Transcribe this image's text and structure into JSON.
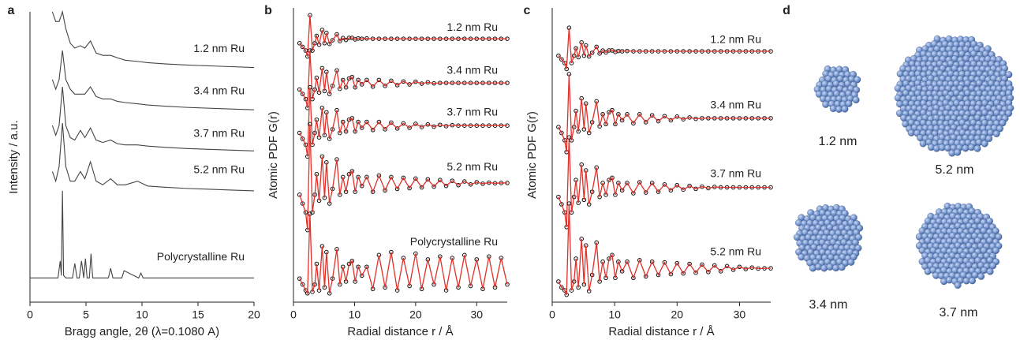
{
  "chart_data": [
    {
      "type": "line",
      "panel_label": "a",
      "xlabel": "Bragg angle, 2θ (λ=0.1080 A)",
      "ylabel": "Intensity / a.u.",
      "xlim": [
        0,
        20
      ],
      "ylim": [
        0,
        12
      ],
      "xticks": [
        0,
        5,
        10,
        15,
        20
      ],
      "x": [
        2,
        2.3,
        2.6,
        2.9,
        3.2,
        3.6,
        4.0,
        4.5,
        4.9,
        5.4,
        5.9,
        6.5,
        7.2,
        7.8,
        8.5,
        9.6,
        10.5,
        12,
        14,
        17,
        20
      ],
      "series": [
        {
          "name": "1.2 nm Ru",
          "color": "#444444",
          "values": [
            12.0,
            11.6,
            11.6,
            12.0,
            11.3,
            10.7,
            10.5,
            10.6,
            10.5,
            10.8,
            10.3,
            10.2,
            10.2,
            10.1,
            10.0,
            9.95,
            9.9,
            9.85,
            9.8,
            9.75,
            9.7
          ]
        },
        {
          "name": "3.4 nm Ru",
          "color": "#444444",
          "values": [
            9.2,
            8.8,
            9.2,
            10.4,
            9.2,
            8.8,
            8.6,
            8.6,
            8.6,
            8.9,
            8.5,
            8.4,
            8.4,
            8.3,
            8.25,
            8.2,
            8.15,
            8.1,
            8.05,
            8.0,
            7.95
          ]
        },
        {
          "name": "3.7 nm Ru",
          "color": "#444444",
          "values": [
            7.3,
            6.9,
            7.3,
            8.9,
            7.3,
            6.8,
            6.7,
            7.1,
            6.8,
            7.2,
            6.7,
            6.6,
            6.7,
            6.55,
            6.5,
            6.5,
            6.45,
            6.4,
            6.35,
            6.3,
            6.25
          ]
        },
        {
          "name": "5.2 nm Ru",
          "color": "#444444",
          "values": [
            5.4,
            5.0,
            5.6,
            7.4,
            5.6,
            5.0,
            5.0,
            5.4,
            5.1,
            5.8,
            5.0,
            4.85,
            5.1,
            4.85,
            4.85,
            5.0,
            4.8,
            4.75,
            4.7,
            4.65,
            4.6
          ]
        },
        {
          "name": "Polycrystalline Ru",
          "color": "#444444",
          "x": [
            0,
            2.5,
            2.7,
            2.8,
            2.9,
            3.0,
            3.2,
            3.8,
            4.0,
            4.2,
            4.4,
            4.6,
            4.8,
            4.95,
            5.1,
            5.3,
            5.45,
            5.6,
            6.5,
            7.0,
            7.2,
            7.4,
            8.2,
            8.4,
            9.7,
            9.9,
            10.1,
            12,
            20
          ],
          "values": [
            1.0,
            1.0,
            1.7,
            1.1,
            4.6,
            1.1,
            1.0,
            1.0,
            1.6,
            1.0,
            1.0,
            1.7,
            1.0,
            1.8,
            1.0,
            1.0,
            2.0,
            1.0,
            1.0,
            1.0,
            1.4,
            1.0,
            1.0,
            1.3,
            1.0,
            1.2,
            1.0,
            1.0,
            1.0
          ]
        }
      ]
    },
    {
      "type": "line",
      "panel_label": "b",
      "xlabel": "Radial distance r / Å",
      "ylabel": "Atomic PDF G(r)",
      "xlim": [
        0,
        35
      ],
      "ylim": [
        0,
        20
      ],
      "xticks": [
        0,
        10,
        20,
        30
      ],
      "line_color": "#e0302a",
      "x": [
        1,
        1.5,
        2,
        2.3,
        2.7,
        3.1,
        3.5,
        3.8,
        4.2,
        4.7,
        5.1,
        5.4,
        5.9,
        6.4,
        7.1,
        7.6,
        8.1,
        8.6,
        9.1,
        9.6,
        10.1,
        10.6,
        11.2,
        12,
        13,
        14,
        15,
        16,
        17,
        18,
        19,
        20,
        21,
        22,
        23,
        24,
        25,
        26,
        27,
        28,
        29,
        30,
        31,
        32,
        33,
        34,
        35
      ],
      "series": [
        {
          "name": "1.2 nm Ru",
          "color": "#111111",
          "marker": "circle",
          "values": [
            17.6,
            17.35,
            17.1,
            16.7,
            19.5,
            17.1,
            17.6,
            18.1,
            17.5,
            18.5,
            17.6,
            18.3,
            17.55,
            17.8,
            18.2,
            17.75,
            17.95,
            17.82,
            17.96,
            17.96,
            17.86,
            17.92,
            17.9,
            17.92,
            17.9,
            17.9,
            17.9,
            17.9,
            17.9,
            17.9,
            17.9,
            17.9,
            17.9,
            17.9,
            17.9,
            17.9,
            17.9,
            17.9,
            17.9,
            17.9,
            17.9,
            17.9,
            17.9,
            17.9,
            17.9,
            17.9,
            17.9
          ]
        },
        {
          "name": "3.4 nm Ru",
          "color": "#111111",
          "marker": "circle",
          "values": [
            14.45,
            14.15,
            13.8,
            13.2,
            17.1,
            13.8,
            14.45,
            15.25,
            14.25,
            15.9,
            14.35,
            15.65,
            14.15,
            14.7,
            15.75,
            14.5,
            15.1,
            14.6,
            15.2,
            15.3,
            14.6,
            15.1,
            14.8,
            15.1,
            14.65,
            15.1,
            14.7,
            15.05,
            14.75,
            15.0,
            14.8,
            14.98,
            14.85,
            14.94,
            14.87,
            14.9,
            14.9,
            14.9,
            14.9,
            14.9,
            14.9,
            14.9,
            14.9,
            14.9,
            14.9,
            14.9,
            14.9
          ]
        },
        {
          "name": "3.7 nm Ru",
          "color": "#111111",
          "marker": "circle",
          "values": [
            11.5,
            11.1,
            10.7,
            9.9,
            14.6,
            10.7,
            11.5,
            12.4,
            11.2,
            13.2,
            11.35,
            12.9,
            11.1,
            11.75,
            13.05,
            11.5,
            12.25,
            11.6,
            12.4,
            12.5,
            11.6,
            12.25,
            11.85,
            12.25,
            11.7,
            12.25,
            11.75,
            12.2,
            11.8,
            12.15,
            11.85,
            12.12,
            11.9,
            12.08,
            11.93,
            12.05,
            11.96,
            12.03,
            12,
            12,
            12,
            12,
            12,
            12,
            12,
            12,
            12
          ]
        },
        {
          "name": "5.2 nm Ru",
          "color": "#111111",
          "marker": "circle",
          "values": [
            7.3,
            6.7,
            6.1,
            4.9,
            12.1,
            6.1,
            7.3,
            8.7,
            6.9,
            9.9,
            7.1,
            9.5,
            6.7,
            7.7,
            9.7,
            7.3,
            8.5,
            7.5,
            8.7,
            8.9,
            7.5,
            8.5,
            7.9,
            8.5,
            7.5,
            8.6,
            7.6,
            8.5,
            7.7,
            8.45,
            7.75,
            8.4,
            7.8,
            8.35,
            7.85,
            8.3,
            7.9,
            8.25,
            7.95,
            8.2,
            8.0,
            8.15,
            8.05,
            8.12,
            8.08,
            8.1,
            8.1
          ]
        },
        {
          "name": "Polycrystalline Ru",
          "color": "#111111",
          "marker": "circle",
          "values": [
            1.6,
            1.2,
            0.8,
            0.6,
            6.0,
            0.7,
            1.2,
            2.6,
            0.8,
            3.8,
            1.0,
            3.4,
            0.6,
            1.6,
            3.6,
            1.2,
            2.4,
            1.4,
            2.6,
            2.8,
            1.4,
            2.4,
            1.8,
            2.4,
            0.9,
            3.2,
            1.0,
            3.4,
            0.8,
            3.0,
            1.1,
            3.3,
            0.9,
            2.9,
            1.2,
            3.1,
            0.8,
            3.0,
            1.0,
            3.2,
            1.1,
            2.9,
            0.9,
            3.1,
            1.0,
            3.0,
            1.2
          ]
        }
      ]
    },
    {
      "type": "line",
      "panel_label": "c",
      "xlabel": "Radial distance r / Å",
      "ylabel": "Atomic PDF G(r)",
      "xlim": [
        0,
        35
      ],
      "ylim": [
        0,
        20
      ],
      "xticks": [
        0,
        10,
        20,
        30
      ],
      "line_color": "#e0302a",
      "x": [
        1,
        1.5,
        2,
        2.3,
        2.7,
        3.1,
        3.5,
        3.8,
        4.2,
        4.7,
        5.1,
        5.4,
        5.9,
        6.4,
        7.1,
        7.6,
        8.1,
        8.6,
        9.1,
        9.6,
        10.1,
        10.6,
        11.2,
        12,
        13,
        14,
        15,
        16,
        17,
        18,
        19,
        20,
        21,
        22,
        23,
        24,
        25,
        26,
        27,
        28,
        29,
        30,
        31,
        32,
        33,
        34,
        35
      ],
      "series": [
        {
          "name": "1.2 nm Ru",
          "color": "#111111",
          "marker": "circle",
          "values": [
            16.75,
            16.5,
            16.25,
            15.85,
            18.65,
            16.25,
            16.75,
            17.25,
            16.65,
            17.65,
            16.75,
            17.45,
            16.7,
            16.95,
            17.35,
            16.9,
            17.1,
            16.97,
            17.11,
            17.11,
            17.01,
            17.07,
            17.05,
            17.07,
            17.05,
            17.05,
            17.05,
            17.05,
            17.05,
            17.05,
            17.05,
            17.05,
            17.05,
            17.05,
            17.05,
            17.05,
            17.05,
            17.05,
            17.05,
            17.05,
            17.05,
            17.05,
            17.05,
            17.05,
            17.05,
            17.05,
            17.05
          ]
        },
        {
          "name": "3.4 nm Ru",
          "color": "#111111",
          "marker": "circle",
          "values": [
            11.9,
            11.5,
            11.0,
            10.2,
            15.5,
            11.0,
            11.9,
            13.0,
            11.6,
            13.85,
            11.75,
            13.5,
            11.5,
            12.23,
            13.65,
            11.95,
            12.77,
            12.1,
            12.9,
            13.05,
            12.1,
            12.77,
            12.36,
            12.77,
            12.16,
            12.77,
            12.23,
            12.7,
            12.3,
            12.64,
            12.36,
            12.61,
            12.43,
            12.55,
            12.46,
            12.5,
            12.5,
            12.5,
            12.5,
            12.5,
            12.5,
            12.5,
            12.5,
            12.5,
            12.5,
            12.5,
            12.5
          ]
        },
        {
          "name": "3.7 nm Ru",
          "color": "#111111",
          "marker": "circle",
          "values": [
            7.15,
            6.65,
            6.1,
            5.1,
            11.2,
            6.1,
            7.15,
            8.3,
            6.75,
            9.35,
            6.95,
            8.95,
            6.65,
            7.5,
            9.15,
            7.15,
            8.1,
            7.3,
            8.3,
            8.45,
            7.3,
            8.1,
            7.6,
            8.1,
            7.4,
            8.15,
            7.45,
            8.1,
            7.5,
            8.0,
            7.6,
            7.95,
            7.65,
            7.9,
            7.7,
            7.85,
            7.75,
            7.83,
            7.8,
            7.8,
            7.8,
            7.8,
            7.8,
            7.8,
            7.8,
            7.8,
            7.8
          ]
        },
        {
          "name": "5.2 nm Ru",
          "color": "#111111",
          "marker": "circle",
          "values": [
            1.4,
            1.0,
            0.8,
            0.5,
            6.7,
            0.8,
            1.4,
            2.95,
            1.0,
            4.3,
            1.2,
            3.85,
            0.75,
            1.85,
            4.05,
            1.4,
            2.75,
            1.65,
            2.95,
            3.2,
            1.65,
            2.75,
            2.1,
            2.75,
            1.65,
            2.85,
            1.75,
            2.75,
            1.85,
            2.7,
            1.9,
            2.65,
            1.95,
            2.6,
            2.0,
            2.55,
            2.05,
            2.5,
            2.1,
            2.45,
            2.2,
            2.4,
            2.25,
            2.35,
            2.28,
            2.3,
            2.3
          ]
        }
      ]
    }
  ],
  "panel_d": {
    "panel_label": "d",
    "particles": [
      "1.2 nm",
      "5.2 nm",
      "3.4 nm",
      "3.7 nm"
    ]
  }
}
